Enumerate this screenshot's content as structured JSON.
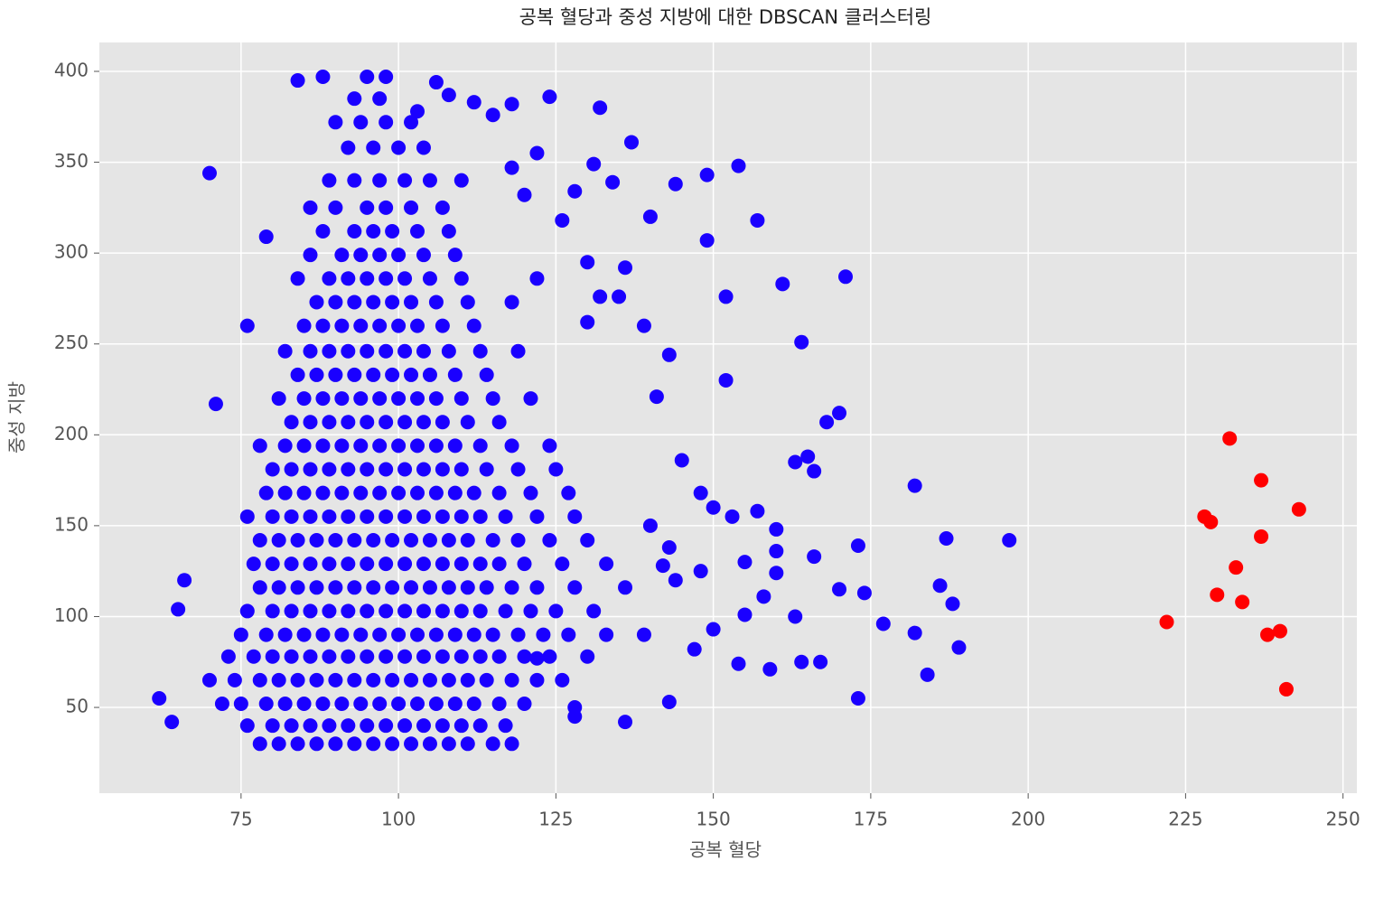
{
  "chart_data": {
    "type": "scatter",
    "title": "공복 혈당과 중성 지방에 대한 DBSCAN 클러스터링",
    "x_label": "공복 혈당",
    "y_label": "중성 지방",
    "xlim": [
      52.5,
      252.2
    ],
    "ylim": [
      2.8,
      415.9
    ],
    "xticks": [
      75,
      100,
      125,
      150,
      175,
      200,
      225,
      250
    ],
    "yticks": [
      50,
      100,
      150,
      200,
      250,
      300,
      350,
      400
    ],
    "grid": true,
    "series": [
      {
        "color": "#1a00ff",
        "x": [
          78,
          81,
          84,
          87,
          90,
          93,
          96,
          99,
          102,
          105,
          108,
          111,
          76,
          80,
          83,
          86,
          89,
          92,
          95,
          98,
          101,
          104,
          107,
          110,
          113,
          117,
          72,
          75,
          79,
          82,
          85,
          88,
          91,
          94,
          97,
          100,
          103,
          106,
          109,
          112,
          116,
          120,
          70,
          74,
          78,
          81,
          84,
          87,
          90,
          93,
          96,
          99,
          102,
          105,
          108,
          111,
          114,
          118,
          122,
          126,
          73,
          77,
          80,
          83,
          86,
          89,
          92,
          95,
          98,
          101,
          104,
          107,
          110,
          113,
          116,
          120,
          124,
          130,
          75,
          79,
          82,
          85,
          88,
          91,
          94,
          97,
          100,
          103,
          106,
          109,
          112,
          115,
          119,
          123,
          127,
          133,
          139,
          76,
          80,
          83,
          86,
          89,
          92,
          95,
          98,
          101,
          104,
          107,
          110,
          113,
          117,
          121,
          125,
          131,
          78,
          81,
          84,
          87,
          90,
          93,
          96,
          99,
          102,
          105,
          108,
          111,
          114,
          118,
          122,
          128,
          136,
          77,
          80,
          83,
          86,
          89,
          92,
          95,
          98,
          101,
          104,
          107,
          110,
          113,
          116,
          120,
          126,
          133,
          78,
          81,
          84,
          87,
          90,
          93,
          96,
          99,
          102,
          105,
          108,
          111,
          115,
          119,
          124,
          130,
          76,
          80,
          83,
          86,
          89,
          92,
          95,
          98,
          101,
          104,
          107,
          110,
          113,
          117,
          122,
          128,
          79,
          82,
          85,
          88,
          91,
          94,
          97,
          100,
          103,
          106,
          109,
          112,
          116,
          121,
          127,
          80,
          83,
          86,
          89,
          92,
          95,
          98,
          101,
          104,
          107,
          110,
          114,
          119,
          125,
          78,
          82,
          85,
          88,
          91,
          94,
          97,
          100,
          103,
          106,
          109,
          113,
          118,
          124,
          83,
          86,
          89,
          92,
          95,
          98,
          101,
          104,
          107,
          111,
          116,
          81,
          85,
          88,
          91,
          94,
          97,
          100,
          103,
          106,
          110,
          115,
          121,
          84,
          87,
          90,
          93,
          96,
          99,
          102,
          105,
          109,
          114,
          82,
          86,
          89,
          92,
          95,
          98,
          101,
          104,
          108,
          113,
          119,
          76,
          85,
          88,
          91,
          94,
          97,
          100,
          103,
          107,
          112,
          87,
          90,
          93,
          96,
          99,
          102,
          106,
          111,
          118,
          84,
          89,
          92,
          95,
          98,
          101,
          105,
          110,
          122,
          86,
          91,
          94,
          97,
          100,
          104,
          109,
          88,
          93,
          96,
          99,
          103,
          108,
          86,
          90,
          95,
          98,
          102,
          107,
          89,
          93,
          97,
          101,
          105,
          110,
          92,
          96,
          100,
          104,
          90,
          94,
          98,
          102,
          93,
          97,
          62,
          64,
          65,
          66,
          70,
          71,
          79,
          84,
          88,
          95,
          98,
          106,
          132,
          137,
          149,
          154,
          149,
          157,
          171,
          161,
          152,
          164,
          152,
          170,
          182,
          187,
          197,
          189,
          184,
          173,
          177,
          182,
          186,
          188,
          174,
          170,
          173,
          166,
          164,
          167,
          163,
          159,
          158,
          160,
          160,
          160,
          155,
          155,
          154,
          150,
          147,
          143,
          136,
          128,
          128,
          122,
          118,
          115,
          165,
          168,
          163,
          166,
          141,
          143,
          145,
          148,
          150,
          153,
          157,
          143,
          140,
          142,
          144,
          148,
          136,
          139,
          135,
          132,
          130,
          126,
          128,
          131,
          134,
          144,
          140,
          130,
          122,
          124,
          115,
          118,
          120,
          118,
          112,
          108,
          103
        ],
        "values": [
          30,
          30,
          30,
          30,
          30,
          30,
          30,
          30,
          30,
          30,
          30,
          30,
          40,
          40,
          40,
          40,
          40,
          40,
          40,
          40,
          40,
          40,
          40,
          40,
          40,
          40,
          52,
          52,
          52,
          52,
          52,
          52,
          52,
          52,
          52,
          52,
          52,
          52,
          52,
          52,
          52,
          52,
          65,
          65,
          65,
          65,
          65,
          65,
          65,
          65,
          65,
          65,
          65,
          65,
          65,
          65,
          65,
          65,
          65,
          65,
          78,
          78,
          78,
          78,
          78,
          78,
          78,
          78,
          78,
          78,
          78,
          78,
          78,
          78,
          78,
          78,
          78,
          78,
          90,
          90,
          90,
          90,
          90,
          90,
          90,
          90,
          90,
          90,
          90,
          90,
          90,
          90,
          90,
          90,
          90,
          90,
          90,
          103,
          103,
          103,
          103,
          103,
          103,
          103,
          103,
          103,
          103,
          103,
          103,
          103,
          103,
          103,
          103,
          103,
          116,
          116,
          116,
          116,
          116,
          116,
          116,
          116,
          116,
          116,
          116,
          116,
          116,
          116,
          116,
          116,
          116,
          129,
          129,
          129,
          129,
          129,
          129,
          129,
          129,
          129,
          129,
          129,
          129,
          129,
          129,
          129,
          129,
          129,
          142,
          142,
          142,
          142,
          142,
          142,
          142,
          142,
          142,
          142,
          142,
          142,
          142,
          142,
          142,
          142,
          155,
          155,
          155,
          155,
          155,
          155,
          155,
          155,
          155,
          155,
          155,
          155,
          155,
          155,
          155,
          155,
          168,
          168,
          168,
          168,
          168,
          168,
          168,
          168,
          168,
          168,
          168,
          168,
          168,
          168,
          168,
          181,
          181,
          181,
          181,
          181,
          181,
          181,
          181,
          181,
          181,
          181,
          181,
          181,
          181,
          194,
          194,
          194,
          194,
          194,
          194,
          194,
          194,
          194,
          194,
          194,
          194,
          194,
          194,
          207,
          207,
          207,
          207,
          207,
          207,
          207,
          207,
          207,
          207,
          207,
          220,
          220,
          220,
          220,
          220,
          220,
          220,
          220,
          220,
          220,
          220,
          220,
          233,
          233,
          233,
          233,
          233,
          233,
          233,
          233,
          233,
          233,
          246,
          246,
          246,
          246,
          246,
          246,
          246,
          246,
          246,
          246,
          246,
          260,
          260,
          260,
          260,
          260,
          260,
          260,
          260,
          260,
          260,
          273,
          273,
          273,
          273,
          273,
          273,
          273,
          273,
          273,
          286,
          286,
          286,
          286,
          286,
          286,
          286,
          286,
          286,
          299,
          299,
          299,
          299,
          299,
          299,
          299,
          312,
          312,
          312,
          312,
          312,
          312,
          325,
          325,
          325,
          325,
          325,
          325,
          340,
          340,
          340,
          340,
          340,
          340,
          358,
          358,
          358,
          358,
          372,
          372,
          372,
          372,
          385,
          385,
          55,
          42,
          104,
          120,
          344,
          217,
          309,
          395,
          397,
          397,
          397,
          394,
          380,
          361,
          343,
          348,
          307,
          318,
          287,
          283,
          276,
          251,
          230,
          212,
          172,
          143,
          142,
          83,
          68,
          55,
          96,
          91,
          117,
          107,
          113,
          115,
          139,
          133,
          75,
          75,
          100,
          71,
          111,
          148,
          136,
          124,
          130,
          101,
          74,
          93,
          82,
          53,
          42,
          50,
          45,
          77,
          30,
          30,
          188,
          207,
          185,
          180,
          221,
          244,
          186,
          168,
          160,
          155,
          158,
          138,
          150,
          128,
          120,
          125,
          292,
          260,
          276,
          276,
          262,
          318,
          334,
          349,
          339,
          338,
          320,
          295,
          355,
          386,
          376,
          382,
          332,
          347,
          383,
          387,
          378
        ]
      },
      {
        "color": "#ff0000",
        "x": [
          222,
          228,
          229,
          230,
          232,
          233,
          234,
          237,
          237,
          238,
          240,
          241,
          243
        ],
        "values": [
          97,
          155,
          152,
          112,
          198,
          127,
          108,
          175,
          144,
          90,
          92,
          60,
          159
        ]
      }
    ]
  }
}
